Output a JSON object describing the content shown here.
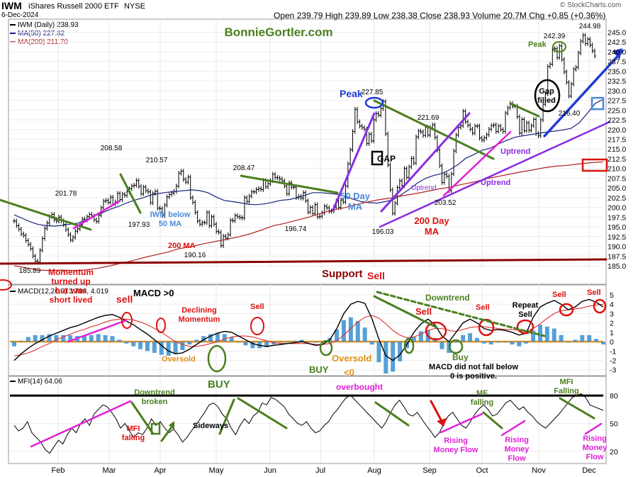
{
  "header": {
    "ticker": "IWM",
    "name": "iShares Russell 2000 ETF",
    "exchange": "NYSE",
    "date": "6-Dec-2024",
    "ohlc": "Open 239.79  High 239.89  Low 238.38  Close 238.93  Volume 20.7M  Chg +0.85 (+0.36%)",
    "credit": "© StockCharts.com"
  },
  "legend": {
    "price": "IWM (Daily) 238.93",
    "ma50": "MA(50) 227.82",
    "ma200": "MA(200) 211.70",
    "macd": "MACD(12,26,9) 3.706, 4.019",
    "mfi": "MFI(14) 64.06"
  },
  "watermark": "BonnieGortler.com",
  "colors": {
    "green": "#4a7f1e",
    "red": "#dd1111",
    "blue": "#1f3ad6",
    "magenta": "#e020d8",
    "purple": "#8a2be2",
    "orange": "#e0901a",
    "hist": "#3a8fd0",
    "darkred": "#8b0000"
  },
  "chart_data": [
    {
      "type": "line",
      "panel": "price",
      "title": "IWM iShares Russell 2000 ETF",
      "x_labels": [
        "Feb",
        "Mar",
        "Apr",
        "May",
        "Jun",
        "Jul",
        "Aug",
        "Sep",
        "Oct",
        "Nov",
        "Dec"
      ],
      "y_ticks": [
        185.0,
        187.5,
        190.0,
        192.5,
        195.0,
        197.5,
        200.0,
        202.5,
        205.0,
        207.5,
        210.0,
        212.5,
        215.0,
        217.5,
        220.0,
        222.5,
        225.0,
        227.5,
        230.0,
        232.5,
        235.0,
        237.5,
        240.0,
        242.5,
        245.0
      ],
      "ylim": [
        185,
        246
      ],
      "series": [
        {
          "name": "IWM (Daily)",
          "values": [
            196.5,
            195.3,
            194.4,
            193.2,
            192.8,
            191.5,
            190.5,
            189.4,
            187.5,
            186.2,
            185.9,
            189.0,
            192.0,
            194.6,
            196.0,
            197.6,
            198.2,
            196.8,
            196.5,
            197.5,
            196.5,
            195.6,
            194.3,
            193.0,
            191.6,
            192.3,
            193.9,
            194.5,
            195.5,
            197.0,
            196.8,
            197.6,
            198.2,
            197.8,
            196.8,
            196.4,
            198.0,
            199.9,
            201.6,
            201.8,
            201.3,
            202.6,
            200.9,
            201.4,
            203.6,
            202.0,
            203.4,
            203.1,
            204.0,
            204.8,
            205.5,
            205.7,
            206.9,
            205.4,
            203.5,
            205.2,
            204.3,
            204.0,
            201.2,
            203.6,
            204.1,
            199.8,
            199.7,
            197.9,
            200.6,
            202.7,
            203.3,
            203.7,
            204.1,
            205.5,
            208.8,
            209.3,
            207.2,
            206.5,
            207.8,
            202.5,
            201.3,
            198.7,
            196.5,
            195.7,
            196.1,
            196.1,
            198.7,
            195.3,
            197.6,
            195.7,
            193.8,
            193.6,
            190.2,
            192.6,
            192.1,
            193.0,
            196.7,
            196.6,
            197.9,
            197.6,
            197.4,
            197.3,
            202.5,
            201.5,
            202.9,
            204.0,
            204.0,
            204.6,
            204.8,
            204.6,
            206.9,
            205.3,
            206.1,
            206.9,
            208.5,
            207.7,
            207.6,
            207.3,
            206.8,
            205.5,
            203.5,
            206.3,
            205.2,
            205.2,
            202.6,
            202.8,
            202.4,
            203.8,
            201.7,
            198.8,
            200.0,
            198.4,
            200.7,
            197.6,
            197.7,
            198.6,
            200.3,
            199.9,
            199.0,
            199.1,
            200.0,
            201.6,
            200.0,
            201.9,
            201.4,
            205.5,
            211.2,
            214.8,
            219.5,
            225.2,
            222.0,
            220.9,
            220.5,
            220.1,
            216.4,
            218.8,
            217.1,
            222.5,
            224.1,
            223.7,
            225.4,
            227.2,
            218.9,
            210.9,
            204.5,
            198.5,
            201.1,
            205.1,
            206.8,
            205.6,
            210.0,
            207.7,
            210.4,
            212.6,
            211.4,
            218.1,
            219.6,
            219.4,
            218.5,
            220.6,
            218.6,
            220.5,
            221.2,
            218.0,
            214.7,
            210.7,
            206.4,
            208.5,
            208.0,
            204.3,
            208.6,
            214.5,
            218.6,
            220.6,
            221.0,
            224.7,
            222.0,
            221.1,
            220.1,
            219.1,
            220.9,
            220.9,
            217.8,
            217.3,
            217.9,
            218.7,
            220.1,
            221.0,
            221.2,
            219.5,
            220.9,
            220.0,
            219.5,
            224.2,
            225.6,
            226.7,
            226.0,
            226.0,
            223.3,
            219.1,
            222.6,
            219.7,
            221.7,
            219.8,
            221.0,
            222.6,
            219.0,
            218.4,
            222.5,
            226.5,
            229.2,
            236.2,
            236.8,
            240.4,
            240.8,
            238.5,
            241.5,
            238.0,
            234.8,
            232.1,
            228.6,
            231.7,
            235.5,
            236.0,
            239.7,
            242.7,
            244.2,
            242.1,
            243.2,
            241.7,
            240.2,
            238.9
          ]
        },
        {
          "name": "MA(50)",
          "values": [
            198.1,
            197.2,
            196.3,
            195.6,
            195.3,
            195.2,
            195.4,
            195.7,
            196.0,
            196.9,
            197.8,
            198.7,
            199.6,
            200.3,
            201.2,
            201.9,
            202.5,
            203.2,
            203.6,
            203.9,
            204.1,
            204.3,
            204.5,
            204.3,
            203.8,
            202.7,
            201.8,
            201.5,
            201.2,
            200.8,
            200.7,
            200.9,
            201.3,
            201.8,
            202.0,
            202.4,
            203.1,
            203.8,
            203.8,
            203.6,
            203.4,
            202.9,
            202.1,
            201.5,
            201.2,
            201.1,
            201.5,
            202.0,
            203.3,
            204.7,
            206.3,
            207.5,
            208.2,
            208.7,
            209.7,
            211.0,
            212.7,
            213.6,
            214.7,
            215.2,
            216.3,
            217.2,
            218.0,
            218.4,
            218.7,
            219.0,
            219.4,
            219.6,
            219.9,
            220.3,
            221.7,
            224.1,
            226.7,
            227.8
          ]
        },
        {
          "name": "MA(200)",
          "values": [
            185.0,
            184.5,
            183.9,
            183.8,
            183.9,
            183.8,
            183.9,
            184.3,
            184.9,
            185.6,
            186.3,
            187.1,
            187.8,
            188.5,
            189.4,
            189.9,
            190.6,
            191.2,
            191.8,
            192.4,
            193.2,
            194.2,
            195.3,
            195.9,
            196.7,
            197.5,
            198.5,
            199.3,
            199.9,
            200.7,
            201.4,
            202.0,
            202.4,
            203.0,
            203.5,
            204.1,
            204.7,
            205.2,
            205.9,
            206.5,
            207.3,
            207.9,
            208.5,
            209.1,
            209.6,
            210.2,
            210.6,
            210.8,
            211.2,
            211.5,
            211.7
          ]
        }
      ],
      "price_labels": [
        "185.89",
        "201.78",
        "208.58",
        "197.93",
        "210.57",
        "190.16",
        "208.47",
        "196.74",
        "227.85",
        "196.03",
        "221.69",
        "203.52",
        "242.39",
        "216.40",
        "244.98"
      ]
    },
    {
      "type": "bar",
      "panel": "macd",
      "y_ticks": [
        5,
        4,
        3,
        2,
        1,
        0,
        -1,
        -2,
        -3
      ],
      "ylim": [
        -3.4,
        5.6
      ],
      "series": [
        {
          "name": "MACD",
          "values": [
            -2.0,
            -1.3,
            -0.7,
            -0.2,
            0.2,
            0.6,
            0.9,
            1.2,
            1.5,
            1.7,
            2.0,
            2.3,
            2.6,
            2.8,
            2.9,
            2.6,
            2.2,
            1.8,
            1.3,
            0.8,
            0.2,
            -0.4,
            -1.0,
            -1.3,
            -1.2,
            -0.8,
            -0.3,
            0.2,
            0.6,
            0.9,
            1.1,
            1.0,
            0.6,
            0.2,
            -0.2,
            -0.4,
            -0.5,
            -0.4,
            -0.3,
            -0.2,
            -0.1,
            0.0,
            -0.2,
            -0.4,
            -0.3,
            0.2,
            1.4,
            3.0,
            4.0,
            4.3,
            4.1,
            2.5,
            0.3,
            -1.5,
            -2.0,
            -1.4,
            -0.3,
            1.0,
            1.9,
            2.4,
            1.8,
            0.6,
            0.0,
            1.0,
            2.0,
            2.4,
            2.0,
            1.4,
            1.2,
            1.3,
            1.2,
            1.0,
            0.7,
            0.9,
            2.6,
            3.7,
            4.1,
            4.4,
            4.0,
            3.4,
            3.7,
            4.3,
            4.5,
            4.2,
            3.7
          ]
        },
        {
          "name": "Signal",
          "values": [
            -1.5,
            -1.4,
            -1.2,
            -0.9,
            -0.5,
            -0.2,
            0.2,
            0.5,
            0.8,
            1.1,
            1.3,
            1.6,
            1.8,
            2.1,
            2.3,
            2.4,
            2.4,
            2.3,
            2.1,
            1.8,
            1.4,
            1.0,
            0.5,
            0.0,
            -0.3,
            -0.5,
            -0.5,
            -0.4,
            -0.2,
            0.0,
            0.3,
            0.5,
            0.6,
            0.6,
            0.5,
            0.3,
            0.1,
            -0.1,
            -0.2,
            -0.2,
            -0.2,
            -0.2,
            -0.2,
            -0.3,
            -0.3,
            -0.2,
            0.1,
            0.7,
            1.4,
            2.1,
            2.6,
            2.8,
            2.5,
            1.9,
            1.2,
            0.7,
            0.4,
            0.5,
            0.8,
            1.2,
            1.4,
            1.4,
            1.2,
            1.1,
            1.3,
            1.5,
            1.6,
            1.6,
            1.5,
            1.4,
            1.3,
            1.3,
            1.2,
            1.1,
            1.4,
            1.9,
            2.5,
            3.0,
            3.3,
            3.4,
            3.5,
            3.6,
            3.8,
            3.9,
            4.0
          ]
        }
      ]
    },
    {
      "type": "line",
      "panel": "mfi",
      "y_ticks": [
        80,
        50,
        20
      ],
      "ylim": [
        10,
        90
      ],
      "series": [
        {
          "name": "MFI(14)",
          "values": [
            48,
            42,
            45,
            52,
            40,
            35,
            30,
            22,
            18,
            25,
            32,
            28,
            38,
            45,
            40,
            50,
            55,
            48,
            60,
            65,
            70,
            68,
            62,
            55,
            45,
            50,
            42,
            35,
            40,
            38,
            45,
            55,
            48,
            52,
            45,
            40,
            44,
            38,
            30,
            35,
            42,
            48,
            55,
            62,
            70,
            72,
            68,
            60,
            55,
            45,
            38,
            48,
            55,
            50,
            58,
            62,
            72,
            70,
            78,
            76,
            72,
            68,
            60,
            55,
            50,
            48,
            52,
            45,
            40,
            42,
            48,
            52,
            60,
            65,
            72,
            78,
            80,
            75,
            70,
            65,
            60,
            55,
            50,
            45,
            52,
            62,
            70,
            75,
            68,
            60,
            58,
            62,
            55,
            48,
            42,
            35,
            40,
            50,
            58,
            62,
            55,
            48,
            45,
            52,
            60,
            66,
            70,
            65,
            58,
            60,
            66,
            72,
            75,
            70,
            65,
            68,
            62,
            58,
            52,
            48,
            45,
            50,
            55,
            60,
            66,
            72,
            78,
            80,
            82,
            78,
            70,
            68,
            66,
            64
          ]
        }
      ]
    }
  ],
  "annotations": {
    "peak1": "Peak",
    "peak2": "Peak",
    "gap": "GAP",
    "gap_filled": "Gap filled",
    "ma50_label": "50 Day MA",
    "ma200_label": "200 Day MA",
    "iwm_below": "IWM below 50 MA",
    "ma200_small": "200 MA",
    "uptrend1": "Uptrend",
    "uptrend2": "Uptrend",
    "uptrend3": "Uptrend",
    "momentum": "Momentum turned up but was short lived",
    "support": "Support",
    "sell_red": "sell",
    "declining": "Declining Momentum",
    "sell1": "Sell",
    "sell_aug": "Sell",
    "sell2": "Sell",
    "sell3": "Sell",
    "repeat_sell": "Repeat Sell",
    "sell_nov": "Sell",
    "sell_dec": "Sell",
    "macd_gt0": "MACD >0",
    "downtrend": "Downtrend",
    "oversold1": "Oversold",
    "oversold2": "Oversold",
    "lt0": "<0",
    "buy1": "BUY",
    "buy2": "BUY",
    "buy3": "Buy",
    "macd_note": "MACD did not fall below 0 is positive.",
    "downtrend_broken": "Downtrend broken",
    "mfi_falling1": "MFI falling",
    "sideways": "Sideways",
    "overbought": "overbought",
    "mf_falling": "MF falling",
    "mfi_falling_nov": "MFI Falling",
    "rising1": "Rising Money Flow",
    "rising2": "Rising Money Flow",
    "rising3": "Rising Money Flow"
  }
}
